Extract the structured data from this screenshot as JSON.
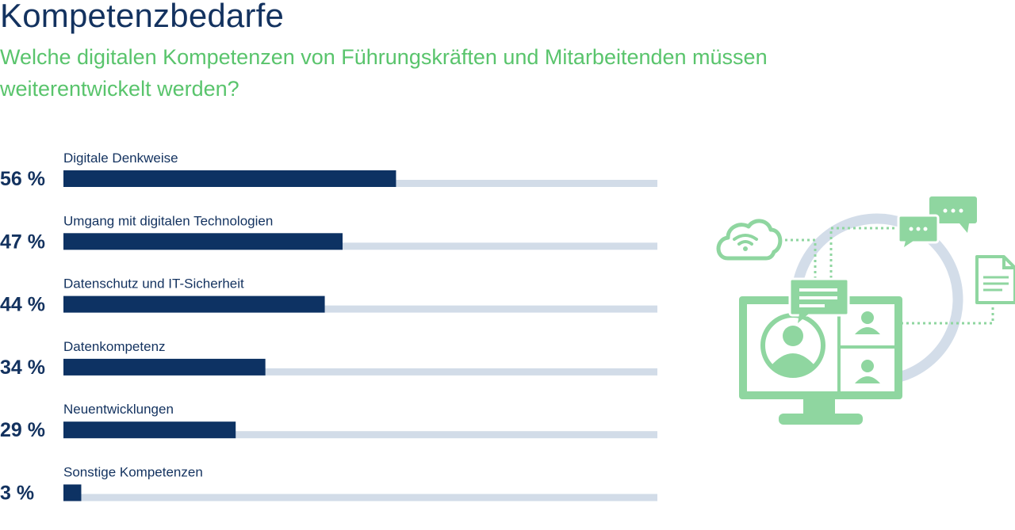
{
  "header": {
    "title": "Kompetenzbedarfe",
    "subtitle": "Welche digitalen Kompetenzen von Führungskräften und Mitarbeitenden müssen weiterentwickelt werden?"
  },
  "colors": {
    "bar": "#0d3263",
    "track": "#d2dce8",
    "illustration": "#8fd6a0",
    "ring": "#d3dde9",
    "title": "#13325f",
    "subtitle": "#59c46c"
  },
  "chart_data": {
    "type": "bar",
    "orientation": "horizontal",
    "categories": [
      "Digitale Denkweise",
      "Umgang mit digitalen Technologien",
      "Datenschutz und IT-Sicherheit",
      "Datenkompetenz",
      "Neuentwicklungen",
      "Sonstige Kompetenzen"
    ],
    "values": [
      56,
      47,
      44,
      34,
      29,
      3
    ],
    "value_labels": [
      "56 %",
      "47 %",
      "44 %",
      "34 %",
      "29 %",
      "3 %"
    ],
    "xlim": [
      0,
      100
    ],
    "grid": false,
    "legend": "none"
  },
  "illustration": {
    "icons": [
      "cloud-wifi-icon",
      "chat-bubble-icon",
      "document-icon",
      "monitor-video-call-icon",
      "user-avatar-icon"
    ]
  }
}
